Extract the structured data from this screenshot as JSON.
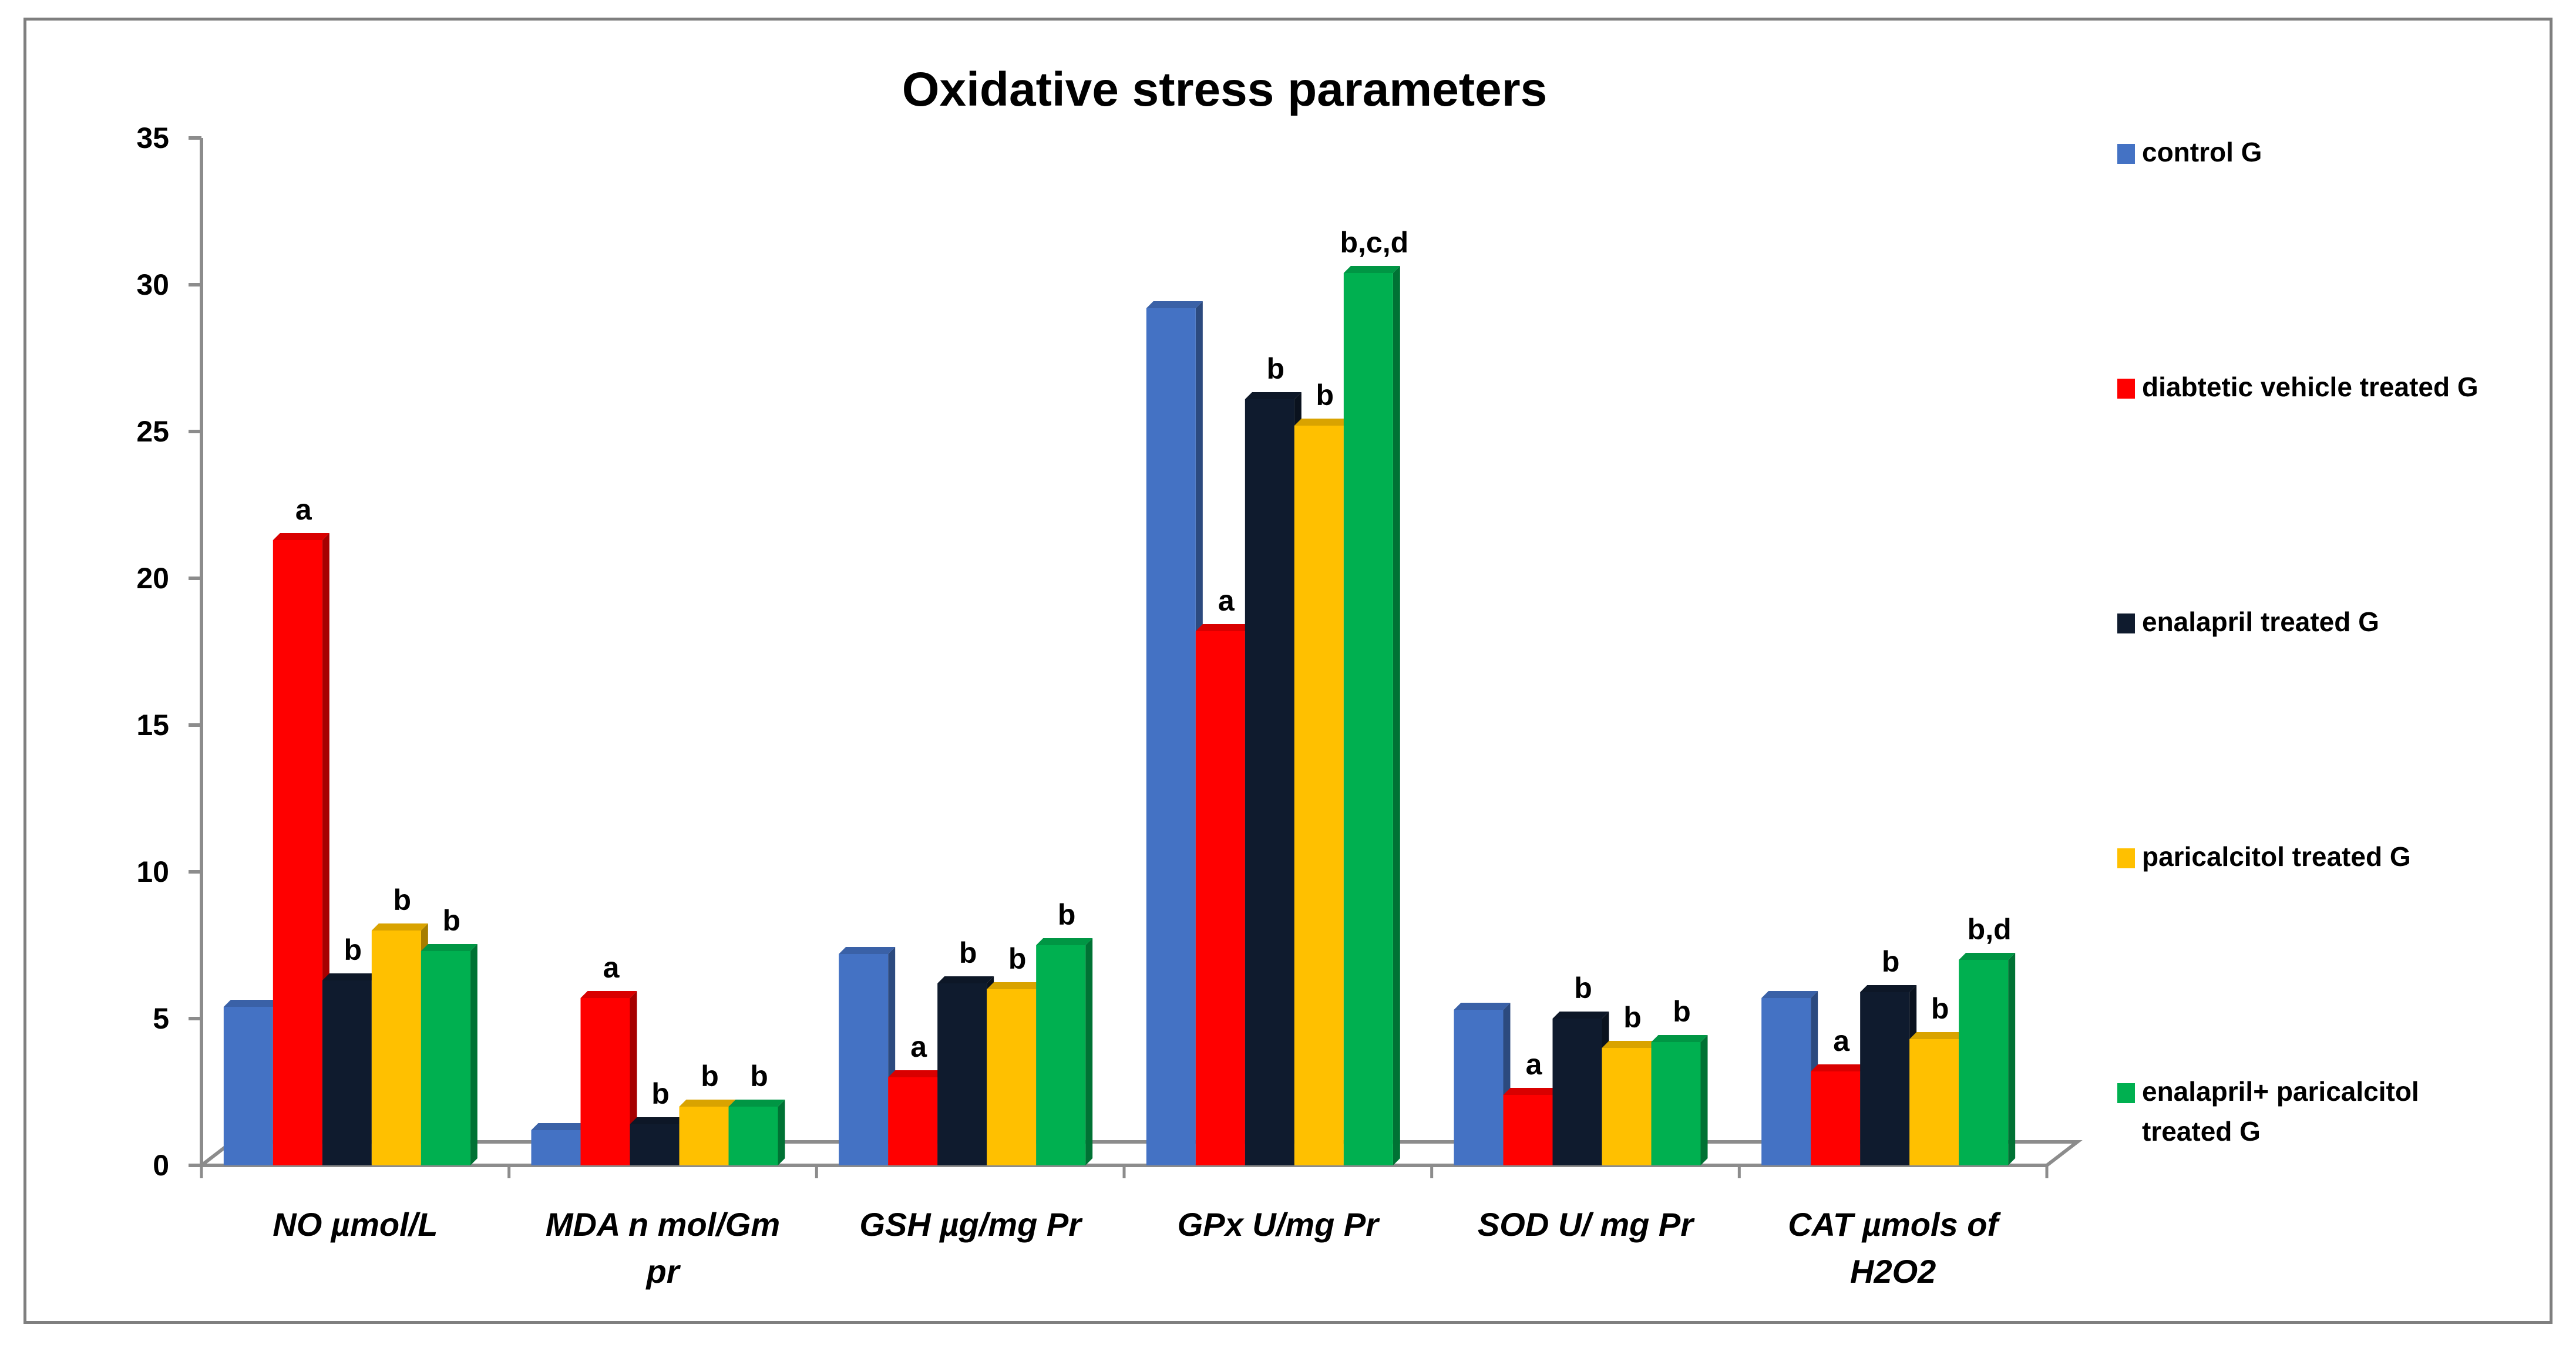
{
  "chart_data": {
    "type": "bar",
    "title": "Oxidative stress parameters",
    "xlabel": "",
    "ylabel": "",
    "ylim": [
      0,
      35
    ],
    "yticks": [
      0,
      5,
      10,
      15,
      20,
      25,
      30,
      35
    ],
    "grid": false,
    "legend_position": "right",
    "categories": [
      [
        "NO µmol/L"
      ],
      [
        "MDA n mol/Gm",
        "pr"
      ],
      [
        "GSH  µg/mg Pr"
      ],
      [
        "GPx U/mg Pr"
      ],
      [
        "SOD U/ mg Pr"
      ],
      [
        "CAT µmols of",
        "H2O2"
      ]
    ],
    "series": [
      {
        "name": [
          "control G"
        ],
        "color": "#4472C4",
        "values": [
          5.4,
          1.2,
          7.2,
          29.2,
          5.3,
          5.7
        ],
        "labels": [
          "",
          "",
          "",
          "",
          "",
          ""
        ]
      },
      {
        "name": [
          " diabtetic vehicle treated G"
        ],
        "color": "#FF0000",
        "values": [
          21.3,
          5.7,
          3.0,
          18.2,
          2.4,
          3.2
        ],
        "labels": [
          "a",
          "a",
          "a",
          "a",
          "a",
          "a"
        ]
      },
      {
        "name": [
          "enalapril treated G"
        ],
        "color": "#0F1B2E",
        "values": [
          6.3,
          1.4,
          6.2,
          26.1,
          5.0,
          5.9
        ],
        "labels": [
          "b",
          "b",
          "b",
          "b",
          "b",
          "b"
        ]
      },
      {
        "name": [
          "paricalcitol treated G"
        ],
        "color": "#FFC000",
        "values": [
          8.0,
          2.0,
          6.0,
          25.2,
          4.0,
          4.3
        ],
        "labels": [
          "b",
          "b",
          "b",
          "b",
          "b",
          "b"
        ]
      },
      {
        "name": [
          "enalapril+ paricalcitol",
          "treated G"
        ],
        "color": "#00B050",
        "values": [
          7.3,
          2.0,
          7.5,
          30.4,
          4.2,
          7.0
        ],
        "labels": [
          "b",
          "b",
          "b",
          "b,c,d",
          "b",
          "b,d"
        ]
      }
    ]
  }
}
